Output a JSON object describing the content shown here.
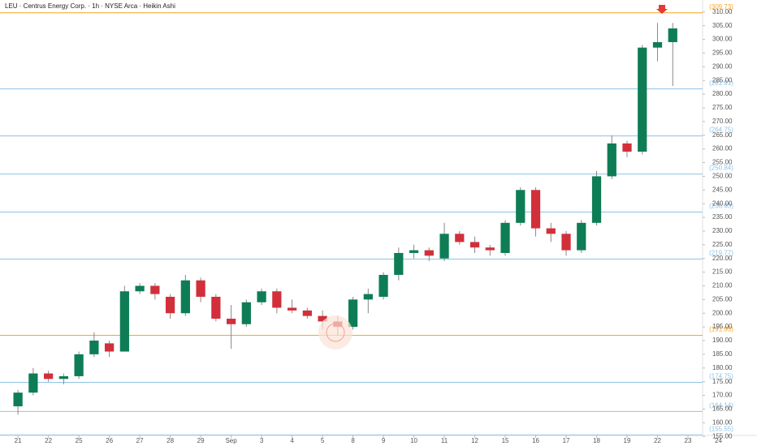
{
  "chart_data": {
    "type": "candlestick",
    "title": "LEU · Centrus Energy Corp. · 1h · NYSE Arca · Heikin Ashi",
    "up_color": "#0e7d55",
    "down_color": "#d1303b",
    "xlim": [
      -0.59,
      22.48
    ],
    "ylim": [
      155.36,
      311.42
    ],
    "xticks": [
      {
        "value": 0,
        "label": "21"
      },
      {
        "value": 1,
        "label": "22"
      },
      {
        "value": 2,
        "label": "25"
      },
      {
        "value": 3,
        "label": "26"
      },
      {
        "value": 4,
        "label": "27"
      },
      {
        "value": 5,
        "label": "28"
      },
      {
        "value": 6,
        "label": "29"
      },
      {
        "value": 7,
        "label": "Sep"
      },
      {
        "value": 8,
        "label": "3"
      },
      {
        "value": 9,
        "label": "4"
      },
      {
        "value": 10,
        "label": "5"
      },
      {
        "value": 11,
        "label": "8"
      },
      {
        "value": 12,
        "label": "9"
      },
      {
        "value": 13,
        "label": "10"
      },
      {
        "value": 14,
        "label": "11"
      },
      {
        "value": 15,
        "label": "12"
      },
      {
        "value": 16,
        "label": "15"
      },
      {
        "value": 17,
        "label": "16"
      },
      {
        "value": 18,
        "label": "17"
      },
      {
        "value": 19,
        "label": "18"
      },
      {
        "value": 20,
        "label": "19"
      },
      {
        "value": 21,
        "label": "22"
      },
      {
        "value": 22,
        "label": "23"
      },
      {
        "value": 23,
        "label": "24"
      }
    ],
    "yticks": [
      {
        "value": 310,
        "label": "310.00"
      },
      {
        "value": 305,
        "label": "305.00"
      },
      {
        "value": 300,
        "label": "300.00"
      },
      {
        "value": 295,
        "label": "295.00"
      },
      {
        "value": 290,
        "label": "290.00"
      },
      {
        "value": 285,
        "label": "285.00"
      },
      {
        "value": 280,
        "label": "280.00"
      },
      {
        "value": 275,
        "label": "275.00"
      },
      {
        "value": 270,
        "label": "270.00"
      },
      {
        "value": 265,
        "label": "265.00"
      },
      {
        "value": 260,
        "label": "260.00"
      },
      {
        "value": 255,
        "label": "255.00"
      },
      {
        "value": 250,
        "label": "250.00"
      },
      {
        "value": 245,
        "label": "245.00"
      },
      {
        "value": 240,
        "label": "240.00"
      },
      {
        "value": 235,
        "label": "235.00"
      },
      {
        "value": 230,
        "label": "230.00"
      },
      {
        "value": 225,
        "label": "225.00"
      },
      {
        "value": 220,
        "label": "220.00"
      },
      {
        "value": 215,
        "label": "215.00"
      },
      {
        "value": 210,
        "label": "210.00"
      },
      {
        "value": 205,
        "label": "205.00"
      },
      {
        "value": 200,
        "label": "200.00"
      },
      {
        "value": 195,
        "label": "195.00"
      },
      {
        "value": 190,
        "label": "190.00"
      },
      {
        "value": 185,
        "label": "185.00"
      },
      {
        "value": 180,
        "label": "180.00"
      },
      {
        "value": 175,
        "label": "175.00"
      },
      {
        "value": 170,
        "label": "170.00"
      },
      {
        "value": 165,
        "label": "165.00"
      },
      {
        "value": 160,
        "label": "160.00"
      },
      {
        "value": 155,
        "label": "155.00"
      }
    ],
    "levels": [
      {
        "value": 309.73,
        "label": "(309.73)",
        "color": "#f5a623"
      },
      {
        "value": 281.91,
        "label": "(281.91)",
        "color": "#8ec3e6"
      },
      {
        "value": 264.75,
        "label": "(264.75)",
        "color": "#8ec3e6"
      },
      {
        "value": 250.84,
        "label": "(250.84)",
        "color": "#8ec3e6"
      },
      {
        "value": 236.93,
        "label": "(236.93)",
        "color": "#8ec3e6"
      },
      {
        "value": 219.77,
        "label": "(219.77)",
        "color": "#8ec3e6"
      },
      {
        "value": 191.95,
        "label": "(191.95)",
        "color": "#f5a623"
      },
      {
        "value": 174.75,
        "label": "(174.75)",
        "color": "#8ec3e6"
      },
      {
        "value": 164.14,
        "label": "(164.14)",
        "color": "#8ec3e6"
      },
      {
        "value": 155.55,
        "label": "(155.55)",
        "color": "#8ec3e6"
      }
    ],
    "candles": [
      {
        "x": 0,
        "open": 166,
        "high": 172,
        "low": 163,
        "close": 171
      },
      {
        "x": 0.5,
        "open": 171,
        "high": 180,
        "low": 170,
        "close": 178
      },
      {
        "x": 1,
        "open": 178,
        "high": 179,
        "low": 175,
        "close": 176
      },
      {
        "x": 1.5,
        "open": 176,
        "high": 178,
        "low": 174,
        "close": 177
      },
      {
        "x": 2,
        "open": 177,
        "high": 186,
        "low": 176,
        "close": 185
      },
      {
        "x": 2.5,
        "open": 185,
        "high": 193,
        "low": 184,
        "close": 190
      },
      {
        "x": 3,
        "open": 189,
        "high": 190,
        "low": 184,
        "close": 186
      },
      {
        "x": 3.5,
        "open": 186,
        "high": 210,
        "low": 186,
        "close": 208
      },
      {
        "x": 4,
        "open": 208,
        "high": 211,
        "low": 207,
        "close": 210
      },
      {
        "x": 4.5,
        "open": 210,
        "high": 211,
        "low": 205,
        "close": 207
      },
      {
        "x": 5,
        "open": 206,
        "high": 207,
        "low": 198,
        "close": 200
      },
      {
        "x": 5.5,
        "open": 200,
        "high": 214,
        "low": 199,
        "close": 212
      },
      {
        "x": 6,
        "open": 212,
        "high": 213,
        "low": 204,
        "close": 206
      },
      {
        "x": 6.5,
        "open": 206,
        "high": 207,
        "low": 197,
        "close": 198
      },
      {
        "x": 7,
        "open": 198,
        "high": 203,
        "low": 187,
        "close": 196
      },
      {
        "x": 7.5,
        "open": 196,
        "high": 205,
        "low": 195,
        "close": 204
      },
      {
        "x": 8,
        "open": 204,
        "high": 209,
        "low": 203,
        "close": 208
      },
      {
        "x": 8.5,
        "open": 208,
        "high": 209,
        "low": 200,
        "close": 202
      },
      {
        "x": 9,
        "open": 202,
        "high": 205,
        "low": 200,
        "close": 201
      },
      {
        "x": 9.5,
        "open": 201,
        "high": 202,
        "low": 198,
        "close": 199
      },
      {
        "x": 10,
        "open": 199,
        "high": 201,
        "low": 194,
        "close": 197
      },
      {
        "x": 10.5,
        "open": 197,
        "high": 199,
        "low": 192,
        "close": 195
      },
      {
        "x": 11,
        "open": 195,
        "high": 206,
        "low": 194,
        "close": 205
      },
      {
        "x": 11.5,
        "open": 205,
        "high": 209,
        "low": 200,
        "close": 207
      },
      {
        "x": 12,
        "open": 206,
        "high": 215,
        "low": 205,
        "close": 214
      },
      {
        "x": 12.5,
        "open": 214,
        "high": 224,
        "low": 212,
        "close": 222
      },
      {
        "x": 13,
        "open": 222,
        "high": 225,
        "low": 220,
        "close": 223
      },
      {
        "x": 13.5,
        "open": 223,
        "high": 224,
        "low": 219,
        "close": 221
      },
      {
        "x": 14,
        "open": 220,
        "high": 233,
        "low": 219,
        "close": 229
      },
      {
        "x": 14.5,
        "open": 229,
        "high": 230,
        "low": 225,
        "close": 226
      },
      {
        "x": 15,
        "open": 226,
        "high": 228,
        "low": 222,
        "close": 224
      },
      {
        "x": 15.5,
        "open": 224,
        "high": 225,
        "low": 221,
        "close": 223
      },
      {
        "x": 16,
        "open": 222,
        "high": 234,
        "low": 221,
        "close": 233
      },
      {
        "x": 16.5,
        "open": 233,
        "high": 246,
        "low": 232,
        "close": 245
      },
      {
        "x": 17,
        "open": 245,
        "high": 246,
        "low": 228,
        "close": 231
      },
      {
        "x": 17.5,
        "open": 231,
        "high": 233,
        "low": 226,
        "close": 229
      },
      {
        "x": 18,
        "open": 229,
        "high": 230,
        "low": 221,
        "close": 223
      },
      {
        "x": 18.5,
        "open": 223,
        "high": 234,
        "low": 222,
        "close": 233
      },
      {
        "x": 19,
        "open": 233,
        "high": 252,
        "low": 232,
        "close": 250
      },
      {
        "x": 19.5,
        "open": 250,
        "high": 265,
        "low": 249,
        "close": 262
      },
      {
        "x": 20,
        "open": 262,
        "high": 263,
        "low": 257,
        "close": 259
      },
      {
        "x": 20.5,
        "open": 259,
        "high": 298,
        "low": 258,
        "close": 297
      },
      {
        "x": 21,
        "open": 297,
        "high": 306,
        "low": 292,
        "close": 299
      },
      {
        "x": 21.5,
        "open": 299,
        "high": 306,
        "low": 283,
        "close": 304
      }
    ]
  }
}
